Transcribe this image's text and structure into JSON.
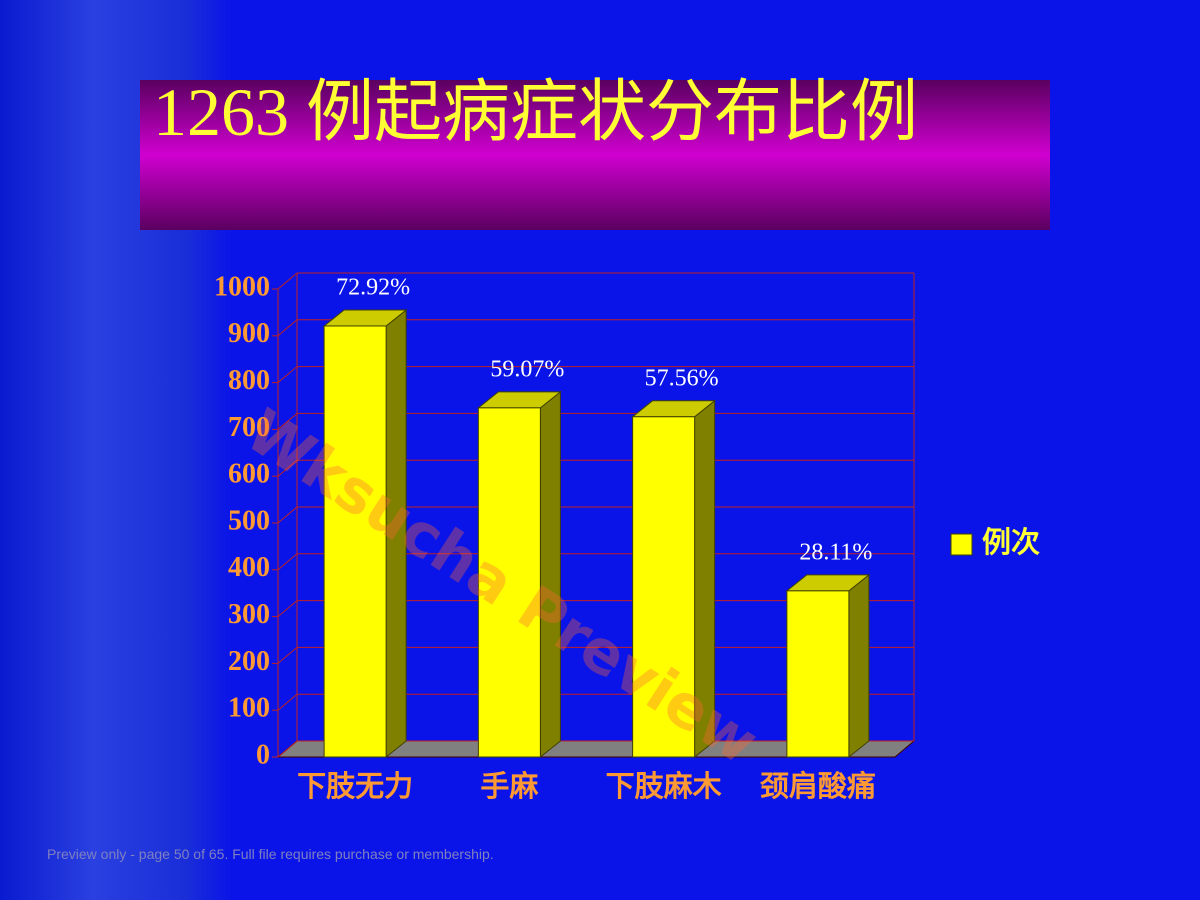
{
  "chart_data": {
    "type": "bar3d",
    "title": "1263 例起病症状分布比例",
    "categories": [
      "下肢无力",
      "手麻",
      "下肢麻木",
      "颈肩酸痛"
    ],
    "series": [
      {
        "name": "例次",
        "color": "#ffff00",
        "values": [
          921,
          746,
          727,
          355
        ]
      }
    ],
    "annotations": [
      "72.92%",
      "59.07%",
      "57.56%",
      "28.11%"
    ],
    "ylim": [
      0,
      1000
    ],
    "yticks": [
      0,
      100,
      200,
      300,
      400,
      500,
      600,
      700,
      800,
      900,
      1000
    ],
    "grid": true,
    "legend": "right"
  },
  "watermark": "Wksucha Preview",
  "footer": "Preview only - page 50 of 65. Full file requires purchase or membership."
}
